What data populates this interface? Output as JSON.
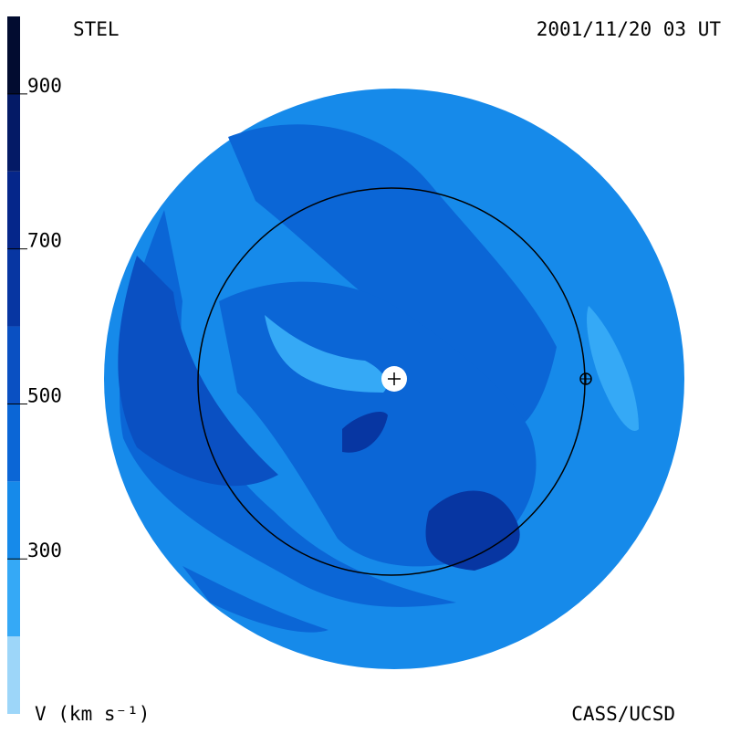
{
  "header": {
    "left": "STEL",
    "right": "2001/11/20 03 UT"
  },
  "footer": {
    "left": "V (km s⁻¹)",
    "right": "CASS/UCSD"
  },
  "colorbar": {
    "range": [
      100,
      1000
    ],
    "ticks": [
      300,
      500,
      700,
      900
    ],
    "bands": [
      {
        "from": 100,
        "to": 200,
        "color": "#9dd6f9"
      },
      {
        "from": 200,
        "to": 300,
        "color": "#35a9f6"
      },
      {
        "from": 300,
        "to": 400,
        "color": "#168aea"
      },
      {
        "from": 400,
        "to": 500,
        "color": "#0b66d6"
      },
      {
        "from": 500,
        "to": 600,
        "color": "#0a50c2"
      },
      {
        "from": 600,
        "to": 700,
        "color": "#0736a2"
      },
      {
        "from": 700,
        "to": 800,
        "color": "#05268a"
      },
      {
        "from": 800,
        "to": 900,
        "color": "#041a66"
      },
      {
        "from": 900,
        "to": 1000,
        "color": "#020c30"
      }
    ]
  }
}
